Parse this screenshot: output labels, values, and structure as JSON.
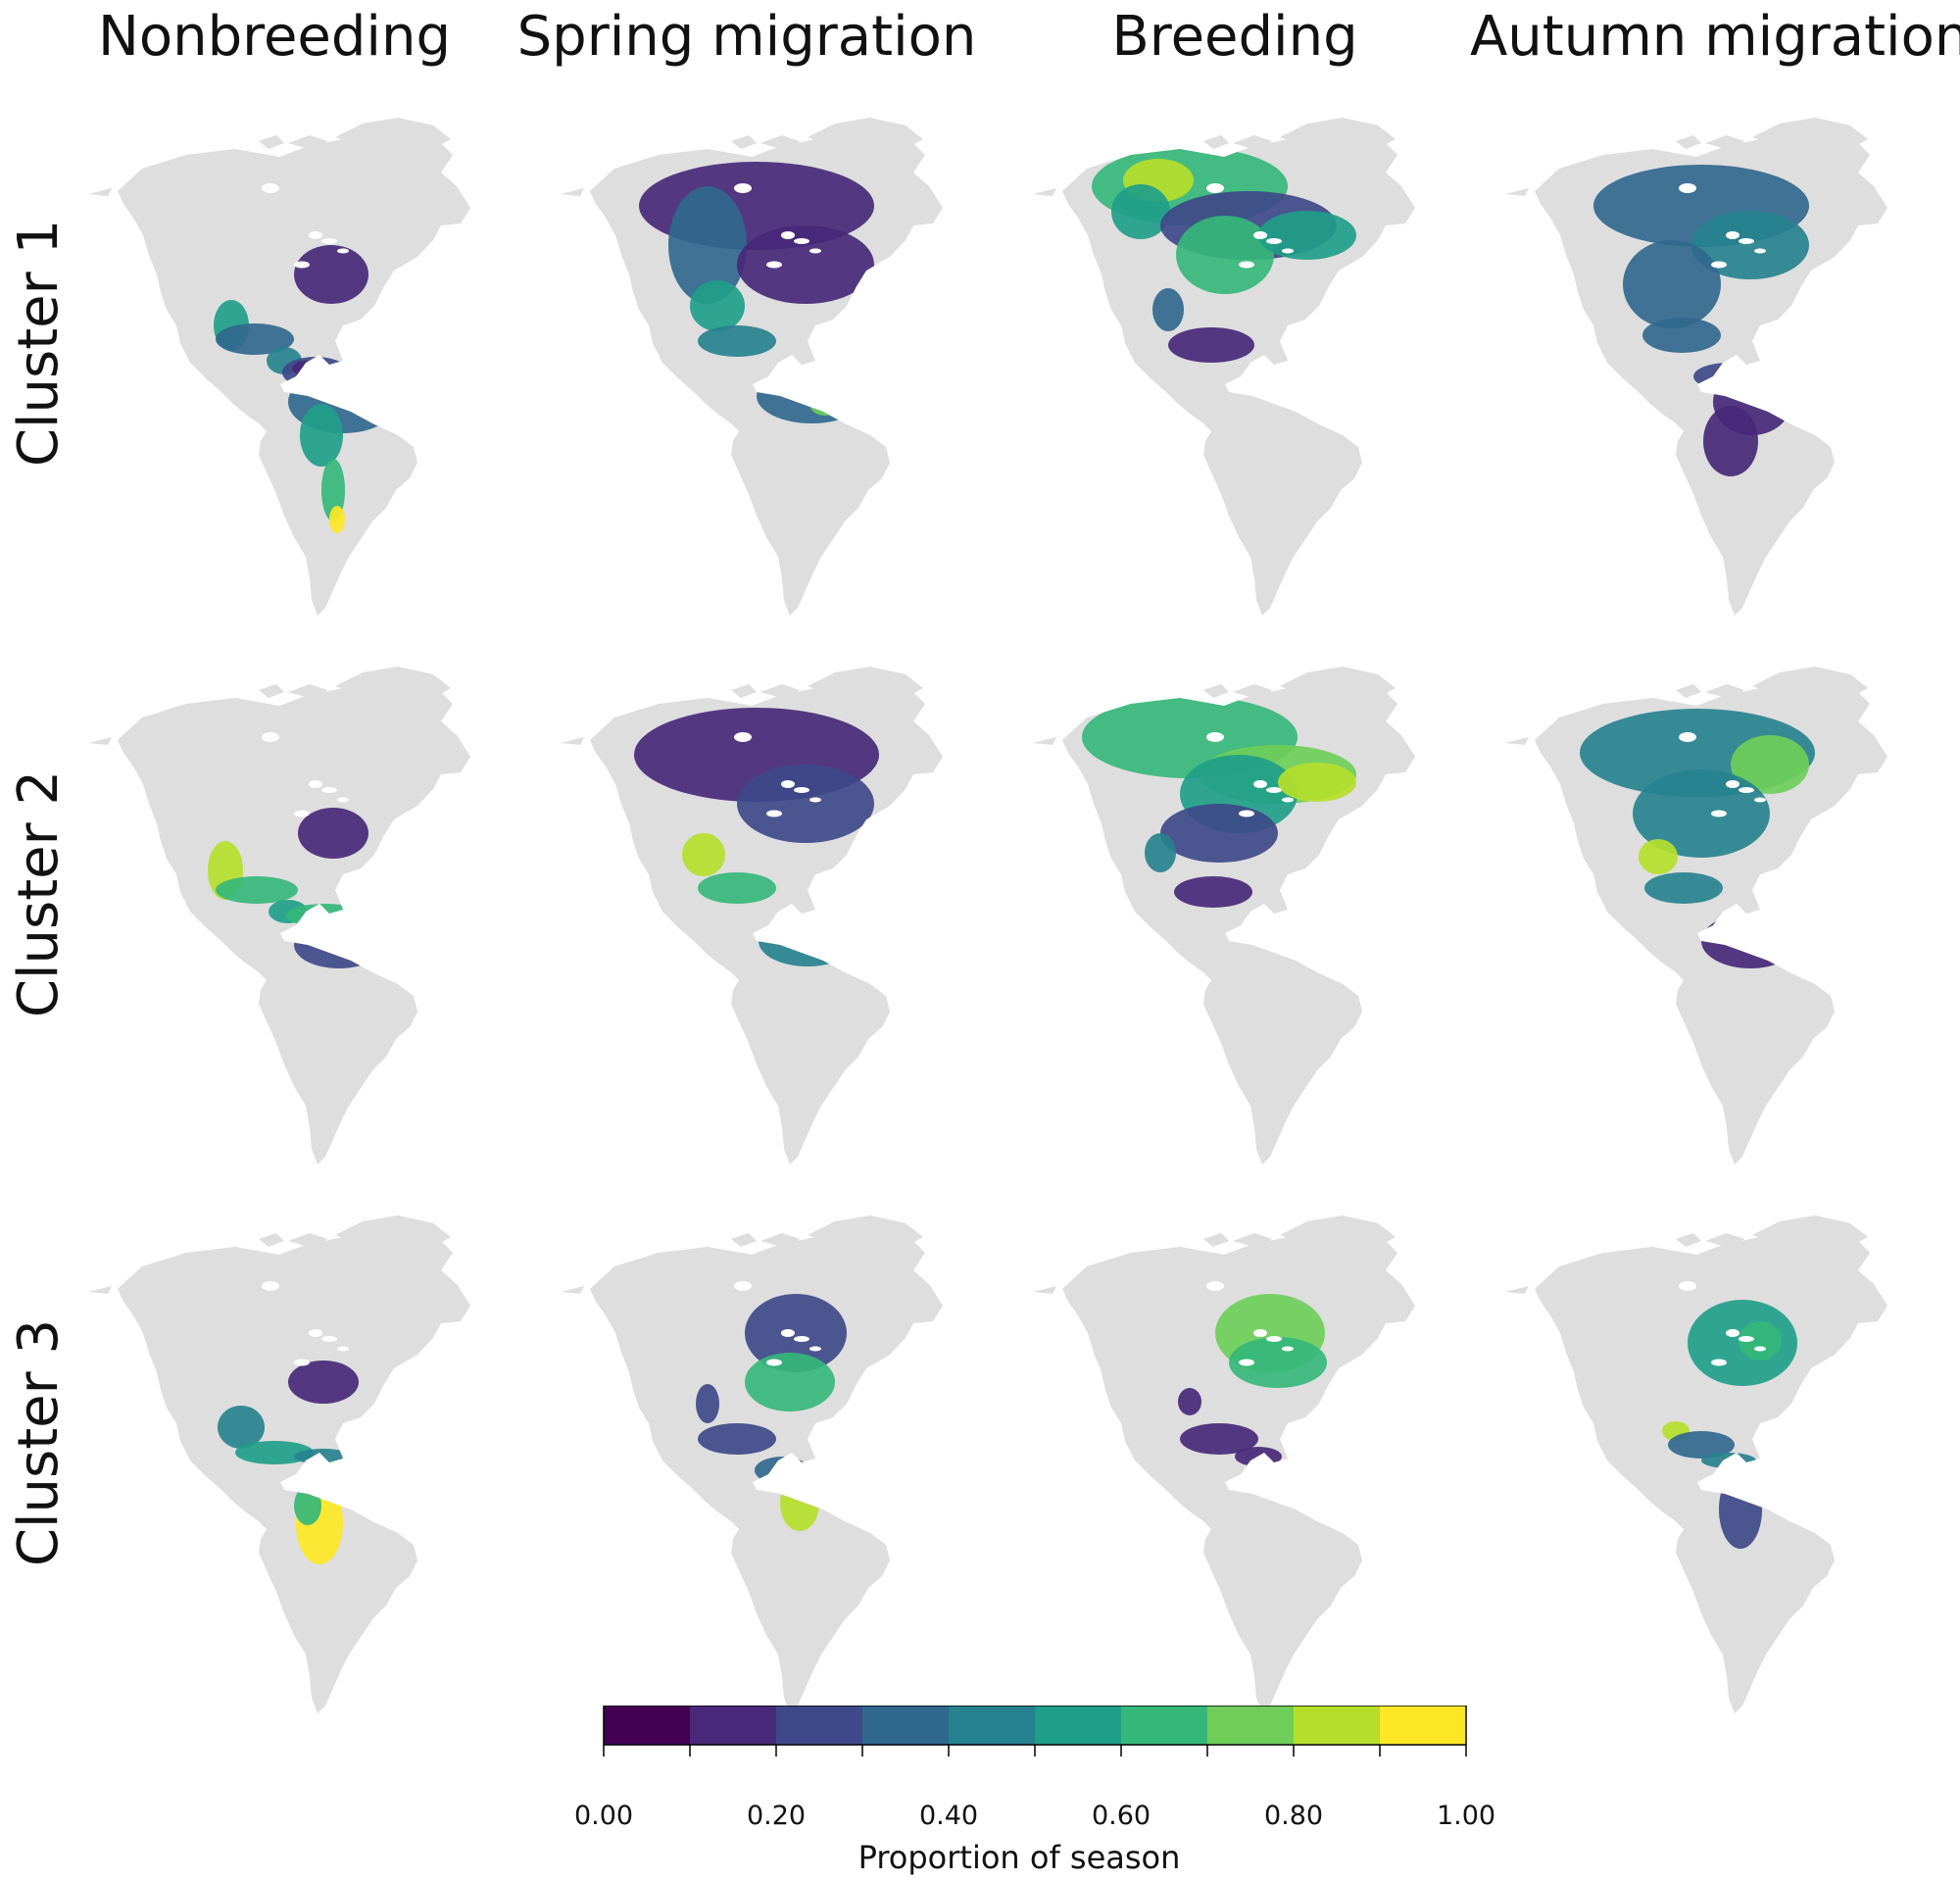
{
  "columns": [
    "Nonbreeding",
    "Spring migration",
    "Breeding",
    "Autumn migration"
  ],
  "rows": [
    "Cluster 1",
    "Cluster 2",
    "Cluster 3"
  ],
  "land_color": "#dedede",
  "palette": [
    "#440154",
    "#482878",
    "#3e4989",
    "#31688e",
    "#26828e",
    "#1f9e89",
    "#35b779",
    "#6ece58",
    "#b5de2b",
    "#fde725"
  ],
  "legend": {
    "title": "Proportion of season",
    "ticks": [
      "0.00",
      "0.20",
      "0.40",
      "0.60",
      "0.80",
      "1.00"
    ],
    "bins": [
      0.0,
      0.1,
      0.2,
      0.3,
      0.4,
      0.5,
      0.6,
      0.7,
      0.8,
      0.9,
      1.0
    ]
  },
  "panels": [
    {
      "row": "Cluster 1",
      "column": "Nonbreeding",
      "regions": [
        "southeastern United States",
        "Mexico",
        "Central America",
        "northern South America"
      ],
      "peak_region": "northern South America"
    },
    {
      "row": "Cluster 1",
      "column": "Spring migration",
      "regions": [
        "North America",
        "Mexico",
        "Central America",
        "northern South America"
      ]
    },
    {
      "row": "Cluster 1",
      "column": "Breeding",
      "regions": [
        "Canada",
        "Alaska",
        "United States",
        "Mexico"
      ],
      "peak_region": "western Canada"
    },
    {
      "row": "Cluster 1",
      "column": "Autumn migration",
      "regions": [
        "North America",
        "Mexico",
        "Central America",
        "northwestern South America"
      ]
    },
    {
      "row": "Cluster 2",
      "column": "Nonbreeding",
      "regions": [
        "southeastern United States",
        "Mexico",
        "Central America",
        "Caribbean",
        "northern South America"
      ],
      "peak_region": "western Mexico"
    },
    {
      "row": "Cluster 2",
      "column": "Spring migration",
      "regions": [
        "North America",
        "Mexico",
        "Central America",
        "northern South America"
      ],
      "peak_region": "northern Mexico"
    },
    {
      "row": "Cluster 2",
      "column": "Breeding",
      "regions": [
        "Canada",
        "Alaska",
        "United States",
        "Mexico"
      ],
      "peak_region": "Canada"
    },
    {
      "row": "Cluster 2",
      "column": "Autumn migration",
      "regions": [
        "North America",
        "Mexico",
        "Central America",
        "northern South America"
      ]
    },
    {
      "row": "Cluster 3",
      "column": "Nonbreeding",
      "regions": [
        "southeastern United States",
        "Mexico",
        "Central America",
        "western South America"
      ],
      "peak_region": "Andes"
    },
    {
      "row": "Cluster 3",
      "column": "Spring migration",
      "regions": [
        "eastern United States",
        "Mexico",
        "Central America",
        "western South America"
      ]
    },
    {
      "row": "Cluster 3",
      "column": "Breeding",
      "regions": [
        "eastern United States",
        "Mexico",
        "Central America"
      ],
      "peak_region": "northeastern United States"
    },
    {
      "row": "Cluster 3",
      "column": "Autumn migration",
      "regions": [
        "eastern United States",
        "Central America",
        "western South America"
      ]
    }
  ]
}
